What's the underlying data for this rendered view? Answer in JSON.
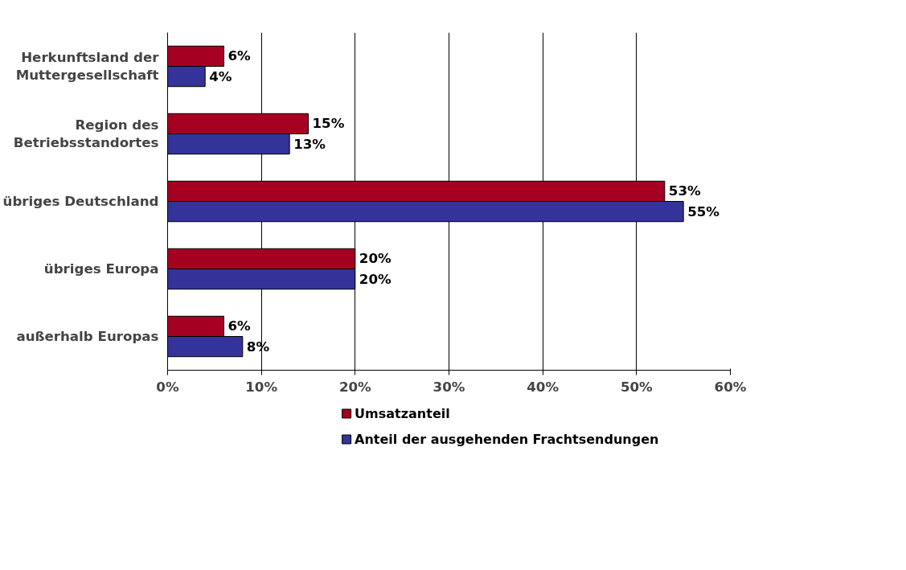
{
  "chart_data": {
    "type": "bar",
    "orientation": "horizontal",
    "categories": [
      "Herkunftsland der Muttergesellschaft",
      "Region des Betriebsstandortes",
      "übriges Deutschland",
      "übriges Europa",
      "außerhalb Europas"
    ],
    "series": [
      {
        "name": "Umsatzanteil",
        "color": "#a50021",
        "values": [
          6,
          15,
          53,
          20,
          6
        ],
        "value_labels": [
          "6%",
          "15%",
          "53%",
          "20%",
          "6%"
        ]
      },
      {
        "name": "Anteil der ausgehenden Frachtsendungen",
        "color": "#333399",
        "values": [
          4,
          13,
          55,
          20,
          8
        ],
        "value_labels": [
          "4%",
          "13%",
          "55%",
          "20%",
          "8%"
        ]
      }
    ],
    "xlim": [
      0,
      60
    ],
    "xticks": [
      {
        "value": 0,
        "label": "0%"
      },
      {
        "value": 10,
        "label": "10%"
      },
      {
        "value": 20,
        "label": "20%"
      },
      {
        "value": 30,
        "label": "30%"
      },
      {
        "value": 40,
        "label": "40%"
      },
      {
        "value": 50,
        "label": "50%"
      },
      {
        "value": 60,
        "label": "60%"
      }
    ],
    "grid": "x",
    "legend": "bottom"
  }
}
